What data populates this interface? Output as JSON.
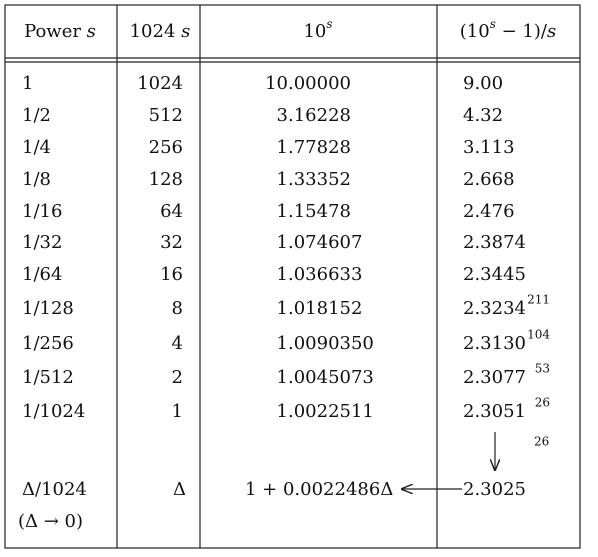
{
  "header": [
    [
      "Power ",
      "s"
    ],
    [
      "1024 ",
      "s"
    ],
    [
      "10",
      "s"
    ],
    [
      "(10",
      "s",
      " − 1)/",
      "s"
    ]
  ],
  "rows": [
    {
      "power": "1",
      "n": "1024",
      "value": "10.00000",
      "ratio": "9.00"
    },
    {
      "power": "1/2",
      "n": "512",
      "value": "3.16228",
      "ratio": "4.32"
    },
    {
      "power": "1/4",
      "n": "256",
      "value": "1.77828",
      "ratio": "3.113"
    },
    {
      "power": "1/8",
      "n": "128",
      "value": "1.33352",
      "ratio": "2.668"
    },
    {
      "power": "1/16",
      "n": "64",
      "value": "1.15478",
      "ratio": "2.476"
    },
    {
      "power": "1/32",
      "n": "32",
      "value": "1.074607",
      "ratio": "2.3874"
    },
    {
      "power": "1/64",
      "n": "16",
      "value": "1.036633",
      "ratio": "2.3445"
    },
    {
      "power": "1/128",
      "n": "8",
      "value": "1.018152",
      "ratio": "2.3234",
      "diff": "211"
    },
    {
      "power": "1/256",
      "n": "4",
      "value": "1.0090350",
      "ratio": "2.3130",
      "diff": "104"
    },
    {
      "power": "1/512",
      "n": "2",
      "value": "1.0045073",
      "ratio": "2.3077",
      "diff": "53"
    },
    {
      "power": "1/1024",
      "n": "1",
      "value": "1.0022511",
      "ratio": "2.3051",
      "diff": "26"
    }
  ],
  "note": "26",
  "limit": {
    "power": "Δ/1024",
    "n": "Δ",
    "value": "1 + 0.0022486Δ",
    "ratio": "2.3025"
  },
  "condition": "(Δ → 0)"
}
